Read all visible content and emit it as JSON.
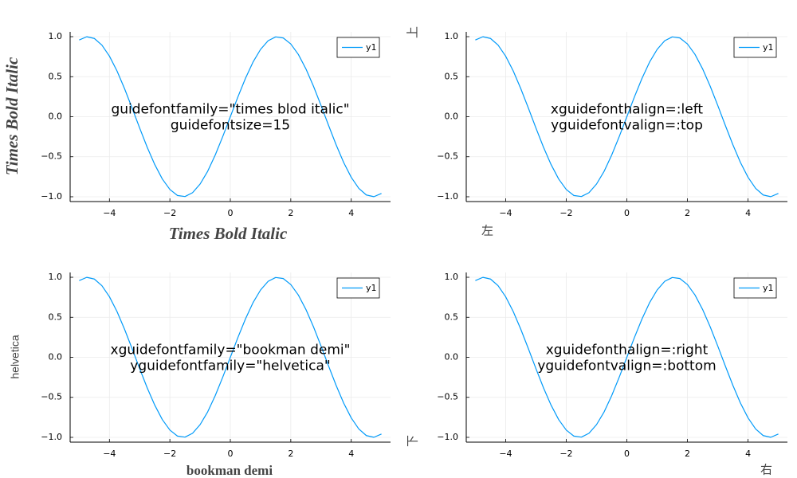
{
  "chart_data": [
    {
      "type": "line",
      "annotation": [
        "guidefontfamily=\"times blod italic\"",
        "guidefontsize=15"
      ],
      "xlabel": "Times Bold Italic",
      "ylabel": "Times Bold Italic",
      "x": [
        -5,
        -4.75,
        -4.5,
        -4.25,
        -4,
        -3.75,
        -3.5,
        -3.25,
        -3,
        -2.75,
        -2.5,
        -2.25,
        -2,
        -1.75,
        -1.5,
        -1.25,
        -1,
        -0.75,
        -0.5,
        -0.25,
        0,
        0.25,
        0.5,
        0.75,
        1,
        1.25,
        1.5,
        1.75,
        2,
        2.25,
        2.5,
        2.75,
        3,
        3.25,
        3.5,
        3.75,
        4,
        4.25,
        4.5,
        4.75,
        5
      ],
      "series": [
        {
          "name": "y1",
          "color": "#009af9",
          "values": [
            0.959,
            0.999,
            0.978,
            0.895,
            0.757,
            0.572,
            0.351,
            0.108,
            -0.141,
            -0.382,
            -0.598,
            -0.778,
            -0.909,
            -0.984,
            -0.997,
            -0.949,
            -0.841,
            -0.682,
            -0.479,
            -0.247,
            0,
            0.247,
            0.479,
            0.682,
            0.841,
            0.949,
            0.997,
            0.984,
            0.909,
            0.778,
            0.598,
            0.382,
            0.141,
            -0.108,
            -0.351,
            -0.572,
            -0.757,
            -0.895,
            -0.978,
            -0.999,
            -0.959
          ]
        }
      ],
      "xlim": [
        -5.3,
        5.3
      ],
      "ylim": [
        -1.06,
        1.06
      ],
      "xticks": [
        {
          "value": -4,
          "label": "−4"
        },
        {
          "value": -2,
          "label": "−2"
        },
        0,
        2,
        4
      ],
      "yticks": [
        {
          "value": -1,
          "label": "−1.0"
        },
        {
          "value": -0.5,
          "label": "−0.5"
        },
        {
          "value": 0,
          "label": "0.0"
        },
        {
          "value": 0.5,
          "label": "0.5"
        },
        {
          "value": 1,
          "label": "1.0"
        }
      ],
      "grid": true,
      "legend": "top-right"
    },
    {
      "type": "line",
      "annotation": [
        "xguidefonthalign=:left",
        "yguidefontvalign=:top"
      ],
      "xlabel": "左",
      "ylabel": "上",
      "x": [
        -5,
        -4.75,
        -4.5,
        -4.25,
        -4,
        -3.75,
        -3.5,
        -3.25,
        -3,
        -2.75,
        -2.5,
        -2.25,
        -2,
        -1.75,
        -1.5,
        -1.25,
        -1,
        -0.75,
        -0.5,
        -0.25,
        0,
        0.25,
        0.5,
        0.75,
        1,
        1.25,
        1.5,
        1.75,
        2,
        2.25,
        2.5,
        2.75,
        3,
        3.25,
        3.5,
        3.75,
        4,
        4.25,
        4.5,
        4.75,
        5
      ],
      "series": [
        {
          "name": "y1",
          "color": "#009af9",
          "values": [
            0.959,
            0.999,
            0.978,
            0.895,
            0.757,
            0.572,
            0.351,
            0.108,
            -0.141,
            -0.382,
            -0.598,
            -0.778,
            -0.909,
            -0.984,
            -0.997,
            -0.949,
            -0.841,
            -0.682,
            -0.479,
            -0.247,
            0,
            0.247,
            0.479,
            0.682,
            0.841,
            0.949,
            0.997,
            0.984,
            0.909,
            0.778,
            0.598,
            0.382,
            0.141,
            -0.108,
            -0.351,
            -0.572,
            -0.757,
            -0.895,
            -0.978,
            -0.999,
            -0.959
          ]
        }
      ],
      "xlim": [
        -5.3,
        5.3
      ],
      "ylim": [
        -1.06,
        1.06
      ],
      "xticks": [
        {
          "value": -4,
          "label": "−4"
        },
        {
          "value": -2,
          "label": "−2"
        },
        0,
        2,
        4
      ],
      "yticks": [
        {
          "value": -1,
          "label": "−1.0"
        },
        {
          "value": -0.5,
          "label": "−0.5"
        },
        {
          "value": 0,
          "label": "0.0"
        },
        {
          "value": 0.5,
          "label": "0.5"
        },
        {
          "value": 1,
          "label": "1.0"
        }
      ],
      "grid": true,
      "legend": "top-right"
    },
    {
      "type": "line",
      "annotation": [
        "xguidefontfamily=\"bookman demi\"",
        "yguidefontfamily=\"helvetica\""
      ],
      "xlabel": "bookman demi",
      "ylabel": "helvetica",
      "x": [
        -5,
        -4.75,
        -4.5,
        -4.25,
        -4,
        -3.75,
        -3.5,
        -3.25,
        -3,
        -2.75,
        -2.5,
        -2.25,
        -2,
        -1.75,
        -1.5,
        -1.25,
        -1,
        -0.75,
        -0.5,
        -0.25,
        0,
        0.25,
        0.5,
        0.75,
        1,
        1.25,
        1.5,
        1.75,
        2,
        2.25,
        2.5,
        2.75,
        3,
        3.25,
        3.5,
        3.75,
        4,
        4.25,
        4.5,
        4.75,
        5
      ],
      "series": [
        {
          "name": "y1",
          "color": "#009af9",
          "values": [
            0.959,
            0.999,
            0.978,
            0.895,
            0.757,
            0.572,
            0.351,
            0.108,
            -0.141,
            -0.382,
            -0.598,
            -0.778,
            -0.909,
            -0.984,
            -0.997,
            -0.949,
            -0.841,
            -0.682,
            -0.479,
            -0.247,
            0,
            0.247,
            0.479,
            0.682,
            0.841,
            0.949,
            0.997,
            0.984,
            0.909,
            0.778,
            0.598,
            0.382,
            0.141,
            -0.108,
            -0.351,
            -0.572,
            -0.757,
            -0.895,
            -0.978,
            -0.999,
            -0.959
          ]
        }
      ],
      "xlim": [
        -5.3,
        5.3
      ],
      "ylim": [
        -1.06,
        1.06
      ],
      "xticks": [
        {
          "value": -4,
          "label": "−4"
        },
        {
          "value": -2,
          "label": "−2"
        },
        0,
        2,
        4
      ],
      "yticks": [
        {
          "value": -1,
          "label": "−1.0"
        },
        {
          "value": -0.5,
          "label": "−0.5"
        },
        {
          "value": 0,
          "label": "0.0"
        },
        {
          "value": 0.5,
          "label": "0.5"
        },
        {
          "value": 1,
          "label": "1.0"
        }
      ],
      "grid": true,
      "legend": "top-right"
    },
    {
      "type": "line",
      "annotation": [
        "xguidefonthalign=:right",
        "yguidefontvalign=:bottom"
      ],
      "xlabel": "右",
      "ylabel": "下",
      "x": [
        -5,
        -4.75,
        -4.5,
        -4.25,
        -4,
        -3.75,
        -3.5,
        -3.25,
        -3,
        -2.75,
        -2.5,
        -2.25,
        -2,
        -1.75,
        -1.5,
        -1.25,
        -1,
        -0.75,
        -0.5,
        -0.25,
        0,
        0.25,
        0.5,
        0.75,
        1,
        1.25,
        1.5,
        1.75,
        2,
        2.25,
        2.5,
        2.75,
        3,
        3.25,
        3.5,
        3.75,
        4,
        4.25,
        4.5,
        4.75,
        5
      ],
      "series": [
        {
          "name": "y1",
          "color": "#009af9",
          "values": [
            0.959,
            0.999,
            0.978,
            0.895,
            0.757,
            0.572,
            0.351,
            0.108,
            -0.141,
            -0.382,
            -0.598,
            -0.778,
            -0.909,
            -0.984,
            -0.997,
            -0.949,
            -0.841,
            -0.682,
            -0.479,
            -0.247,
            0,
            0.247,
            0.479,
            0.682,
            0.841,
            0.949,
            0.997,
            0.984,
            0.909,
            0.778,
            0.598,
            0.382,
            0.141,
            -0.108,
            -0.351,
            -0.572,
            -0.757,
            -0.895,
            -0.978,
            -0.999,
            -0.959
          ]
        }
      ],
      "xlim": [
        -5.3,
        5.3
      ],
      "ylim": [
        -1.06,
        1.06
      ],
      "xticks": [
        {
          "value": -4,
          "label": "−4"
        },
        {
          "value": -2,
          "label": "−2"
        },
        0,
        2,
        4
      ],
      "yticks": [
        {
          "value": -1,
          "label": "−1.0"
        },
        {
          "value": -0.5,
          "label": "−0.5"
        },
        {
          "value": 0,
          "label": "0.0"
        },
        {
          "value": 0.5,
          "label": "0.5"
        },
        {
          "value": 1,
          "label": "1.0"
        }
      ],
      "grid": true,
      "legend": "top-right"
    }
  ]
}
